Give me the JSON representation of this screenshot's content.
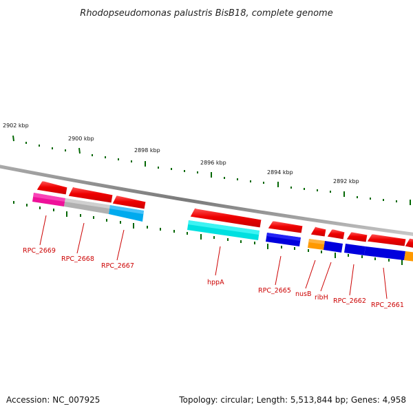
{
  "title": "Rhodopseudomonas palustris BisB18, complete genome",
  "footer": {
    "accession": "Accession: NC_007925",
    "stats": "Topology: circular; Length: 5,513,844 bp; Genes: 4,958"
  },
  "ruler": [
    {
      "label": "2902 kbp"
    },
    {
      "label": "2900 kbp"
    },
    {
      "label": "2898 kbp"
    },
    {
      "label": "2896 kbp"
    },
    {
      "label": "2894 kbp"
    },
    {
      "label": "2892 kbp"
    }
  ],
  "genes": [
    {
      "label": "RPC_2669"
    },
    {
      "label": "RPC_2668"
    },
    {
      "label": "RPC_2667"
    },
    {
      "label": "hppA"
    },
    {
      "label": "RPC_2665"
    },
    {
      "label": "nusB"
    },
    {
      "label": "ribH"
    },
    {
      "label": "RPC_2662"
    },
    {
      "label": "RPC_2661"
    }
  ],
  "colors": {
    "cds": "#ee0000",
    "magenta": "#ee1199",
    "gray": "#b0b0b0",
    "sky": "#00aaee",
    "cyan": "#00e0e0",
    "blue": "#0000dd",
    "orange": "#ff9900",
    "backbone": "#888888",
    "tick": "#006600",
    "label": "#cc0000"
  }
}
